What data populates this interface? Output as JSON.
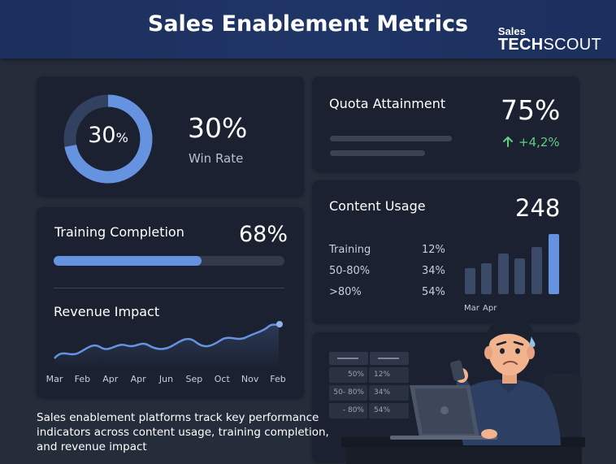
{
  "header": {
    "title": "Sales Enablement Metrics",
    "logo_top": "Sales",
    "logo_tech": "TECH",
    "logo_scout": "SCOUT"
  },
  "win_rate": {
    "donut_label": "30",
    "donut_unit": "%",
    "value": "30%",
    "label": "Win Rate",
    "fraction": 0.3
  },
  "quota": {
    "label": "Quota Attainment",
    "value": "75%",
    "change": "+4,2%",
    "change_icon": "arrow-up-icon"
  },
  "training": {
    "label": "Training Completion",
    "value": "68%",
    "fraction": 0.68
  },
  "revenue": {
    "label": "Revenue Impact",
    "months": [
      "Mar",
      "Feb",
      "Apr",
      "Apr",
      "Jun",
      "Sep",
      "Oct",
      "Nov",
      "Feb"
    ]
  },
  "content_usage": {
    "label": "Content Usage",
    "value": "248",
    "rows": [
      {
        "name": "Training",
        "pct": "12%"
      },
      {
        "name": "50-80%",
        "pct": "34%"
      },
      {
        "name": ">80%",
        "pct": "54%"
      }
    ],
    "bar_labels": [
      "Mar",
      "Apr"
    ]
  },
  "illustration": {
    "mini_table": [
      {
        "band": "50%",
        "pct": "12%"
      },
      {
        "band": "50- 80%",
        "pct": "34%"
      },
      {
        "band": "- 80%",
        "pct": "54%"
      }
    ]
  },
  "caption": "Sales enablement platforms track key performance indicators across content usage, training completion, and revenue impact",
  "colors": {
    "accent": "#6693e0",
    "positive": "#5ccf7d",
    "card": "#1b2130",
    "background": "#252d3b"
  }
}
